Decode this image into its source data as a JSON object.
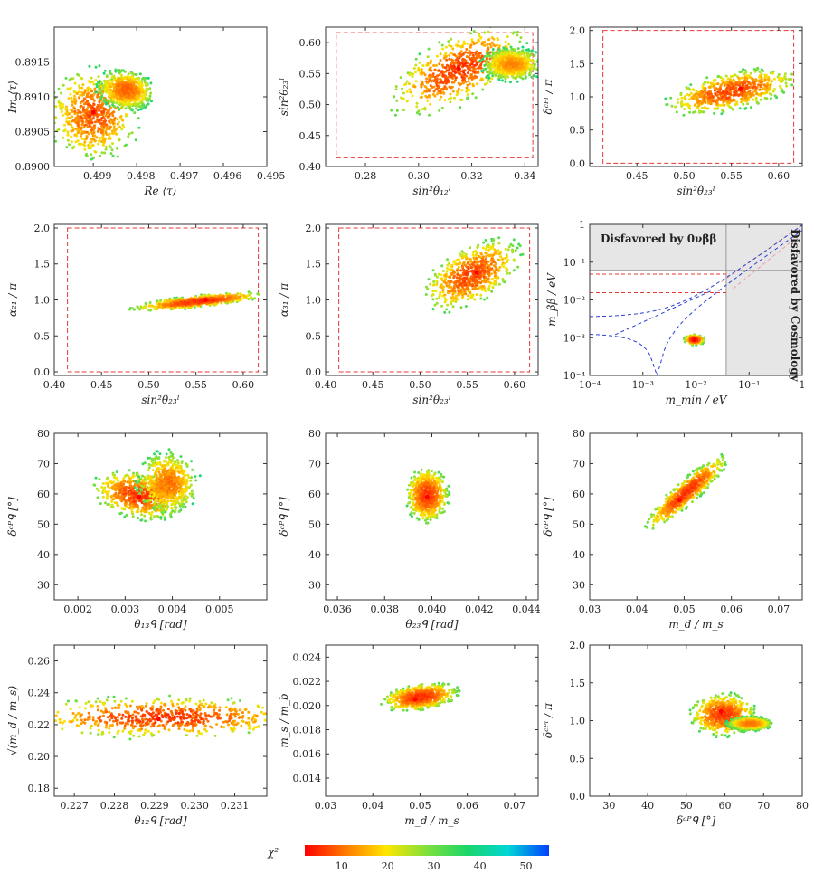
{
  "figure": {
    "colorbar": {
      "label": "χ²",
      "ticks": [
        10,
        20,
        30,
        40,
        50
      ],
      "range": [
        2,
        55
      ],
      "colors": [
        "#ff0000",
        "#ff7a00",
        "#ffe600",
        "#7ee03c",
        "#1bd66a",
        "#00d6d6",
        "#0040ff"
      ]
    }
  },
  "chart_data": [
    {
      "type": "scatter",
      "name": "re-im-tau",
      "xlabel": "Re ⟨τ⟩",
      "ylabel": "Im ⟨τ⟩",
      "xlim": [
        -0.4999,
        -0.495
      ],
      "ylim": [
        0.89,
        0.892
      ],
      "xticks": [
        -0.499,
        -0.498,
        -0.497,
        -0.496,
        -0.495
      ],
      "xticklabels": [
        "−0.499",
        "−0.498",
        "−0.497",
        "−0.496",
        "−0.495"
      ],
      "yticks": [
        0.89,
        0.8905,
        0.891,
        0.8915
      ],
      "yticklabels": [
        "0.8900",
        "0.8905",
        "0.8910",
        "0.8915"
      ],
      "clusters": [
        {
          "cx": -0.499,
          "cy": 0.89075,
          "sx": 0.00045,
          "sy": 0.00028,
          "rot": 55,
          "chi": 20
        },
        {
          "cx": -0.49825,
          "cy": 0.8911,
          "sx": 0.00028,
          "sy": 0.00012,
          "rot": 10,
          "chi": 24
        }
      ],
      "best_fit": [
        -0.499,
        0.89078
      ]
    },
    {
      "type": "scatter",
      "name": "s12-s23",
      "xlabel": "sin²θ₁₂ˡ",
      "ylabel": "sin²θ₂₃ˡ",
      "xlim": [
        0.265,
        0.345
      ],
      "ylim": [
        0.4,
        0.625
      ],
      "xticks": [
        0.28,
        0.3,
        0.32,
        0.34
      ],
      "xticklabels": [
        "0.28",
        "0.30",
        "0.32",
        "0.34"
      ],
      "yticks": [
        0.4,
        0.45,
        0.5,
        0.55,
        0.6
      ],
      "yticklabels": [
        "0.40",
        "0.45",
        "0.50",
        "0.55",
        "0.60"
      ],
      "bounds": {
        "x": [
          0.269,
          0.343
        ],
        "y": [
          0.414,
          0.616
        ]
      },
      "clusters": [
        {
          "cx": 0.315,
          "cy": 0.556,
          "sx": 0.012,
          "sy": 0.022,
          "rot": -28,
          "chi": 16
        },
        {
          "cx": 0.335,
          "cy": 0.565,
          "sx": 0.005,
          "sy": 0.012,
          "rot": 0,
          "chi": 30
        }
      ],
      "best_fit": [
        0.315,
        0.558
      ]
    },
    {
      "type": "scatter",
      "name": "s23-dcp",
      "xlabel": "sin²θ₂₃ˡ",
      "ylabel": "δᶜᴾˡ / π",
      "xlim": [
        0.4,
        0.625
      ],
      "ylim": [
        -0.05,
        2.05
      ],
      "xticks": [
        0.45,
        0.5,
        0.55,
        0.6
      ],
      "xticklabels": [
        "0.45",
        "0.50",
        "0.55",
        "0.60"
      ],
      "yticks": [
        0,
        0.5,
        1,
        1.5,
        2
      ],
      "yticklabels": [
        "0.0",
        "0.5",
        "1.0",
        "1.5",
        "2.0"
      ],
      "bounds": {
        "x": [
          0.414,
          0.616
        ],
        "y": [
          0,
          2
        ]
      },
      "clusters": [
        {
          "cx": 0.55,
          "cy": 1.08,
          "sx": 0.03,
          "sy": 0.12,
          "rot": -12,
          "chi": 18
        }
      ],
      "best_fit": [
        0.56,
        1.12
      ]
    },
    {
      "type": "scatter",
      "name": "s23-a21",
      "xlabel": "sin²θ₂₃ˡ",
      "ylabel": "α₂₁ / π",
      "xlim": [
        0.4,
        0.625
      ],
      "ylim": [
        -0.05,
        2.05
      ],
      "xticks": [
        0.4,
        0.45,
        0.5,
        0.55,
        0.6
      ],
      "xticklabels": [
        "0.40",
        "0.45",
        "0.50",
        "0.55",
        "0.60"
      ],
      "yticks": [
        0,
        0.5,
        1,
        1.5,
        2
      ],
      "yticklabels": [
        "0.0",
        "0.5",
        "1.0",
        "1.5",
        "2.0"
      ],
      "bounds": {
        "x": [
          0.414,
          0.616
        ],
        "y": [
          0,
          2
        ]
      },
      "clusters": [
        {
          "cx": 0.553,
          "cy": 0.98,
          "sx": 0.03,
          "sy": 0.035,
          "rot": -6,
          "chi": 16
        }
      ],
      "best_fit": [
        0.56,
        1.0
      ]
    },
    {
      "type": "scatter",
      "name": "s23-a31",
      "xlabel": "sin²θ₂₃ˡ",
      "ylabel": "α₃₁ / π",
      "xlim": [
        0.4,
        0.625
      ],
      "ylim": [
        -0.05,
        2.05
      ],
      "xticks": [
        0.4,
        0.45,
        0.5,
        0.55,
        0.6
      ],
      "xticklabels": [
        "0.40",
        "0.45",
        "0.50",
        "0.55",
        "0.60"
      ],
      "yticks": [
        0,
        0.5,
        1,
        1.5,
        2
      ],
      "yticklabels": [
        "0.0",
        "0.5",
        "1.0",
        "1.5",
        "2.0"
      ],
      "bounds": {
        "x": [
          0.414,
          0.616
        ],
        "y": [
          0,
          2
        ]
      },
      "clusters": [
        {
          "cx": 0.555,
          "cy": 1.35,
          "sx": 0.024,
          "sy": 0.16,
          "rot": -30,
          "chi": 18
        }
      ],
      "best_fit": [
        0.56,
        1.38
      ]
    },
    {
      "type": "scatter",
      "name": "mbb-mmin",
      "log": true,
      "xlabel": "m_min / eV",
      "ylabel": "m_ββ / eV",
      "xlim": [
        0.0001,
        1
      ],
      "ylim": [
        0.0001,
        1
      ],
      "xticks": [
        0.0001,
        0.001,
        0.01,
        0.1,
        1
      ],
      "xticklabels": [
        "10⁻⁴",
        "10⁻³",
        "10⁻²",
        "10⁻¹",
        "1"
      ],
      "yticks": [
        0.0001,
        0.001,
        0.01,
        0.1,
        1
      ],
      "yticklabels": [
        "10⁻⁴",
        "10⁻³",
        "10⁻²",
        "10⁻¹",
        "1"
      ],
      "excluded_0vbb": 0.061,
      "excluded_cosmology": 0.037,
      "annotations": [
        "Disfavored by 0νββ",
        "Disfavored by Cosmology"
      ],
      "red_lines": [
        0.0155,
        0.048
      ],
      "clusters": [
        {
          "cx": 0.0093,
          "cy": 0.00088,
          "sx": 0.0011,
          "sy": 0.00012,
          "rot": 0,
          "chi": 14
        }
      ],
      "best_fit": [
        0.0093,
        0.00088
      ]
    },
    {
      "type": "scatter",
      "name": "t13q-dcpq",
      "xlabel": "θ₁₃ᑫ [rad]",
      "ylabel": "δᶜᴾᑫ [°]",
      "xlim": [
        0.0015,
        0.006
      ],
      "ylim": [
        25,
        80
      ],
      "xticks": [
        0.002,
        0.003,
        0.004,
        0.005
      ],
      "xticklabels": [
        "0.002",
        "0.003",
        "0.004",
        "0.005"
      ],
      "yticks": [
        30,
        40,
        50,
        60,
        70,
        80
      ],
      "yticklabels": [
        "30",
        "40",
        "50",
        "60",
        "70",
        "80"
      ],
      "clusters": [
        {
          "cx": 0.0033,
          "cy": 59.5,
          "sx": 0.00042,
          "sy": 3.2,
          "rot": 12,
          "chi": 16
        },
        {
          "cx": 0.0039,
          "cy": 63.5,
          "sx": 0.00028,
          "sy": 4.5,
          "rot": 0,
          "chi": 26
        }
      ],
      "best_fit": [
        0.0033,
        59
      ]
    },
    {
      "type": "scatter",
      "name": "t23q-dcpq",
      "xlabel": "θ₂₃ᑫ [rad]",
      "ylabel": "δᶜᴾᑫ [°]",
      "xlim": [
        0.0355,
        0.0445
      ],
      "ylim": [
        25,
        80
      ],
      "xticks": [
        0.036,
        0.038,
        0.04,
        0.042,
        0.044
      ],
      "xticklabels": [
        "0.036",
        "0.038",
        "0.040",
        "0.042",
        "0.044"
      ],
      "yticks": [
        30,
        40,
        50,
        60,
        70,
        80
      ],
      "yticklabels": [
        "30",
        "40",
        "50",
        "60",
        "70",
        "80"
      ],
      "clusters": [
        {
          "cx": 0.0398,
          "cy": 59.5,
          "sx": 0.00038,
          "sy": 3.8,
          "rot": 0,
          "chi": 17
        }
      ],
      "best_fit": [
        0.0398,
        59
      ]
    },
    {
      "type": "scatter",
      "name": "mdms-dcpq",
      "xlabel": "m_d / m_s",
      "ylabel": "δᶜᴾᑫ [°]",
      "xlim": [
        0.03,
        0.075
      ],
      "ylim": [
        25,
        80
      ],
      "xticks": [
        0.03,
        0.04,
        0.05,
        0.06,
        0.07
      ],
      "xticklabels": [
        "0.03",
        "0.04",
        "0.05",
        "0.06",
        "0.07"
      ],
      "yticks": [
        30,
        40,
        50,
        60,
        70,
        80
      ],
      "yticklabels": [
        "30",
        "40",
        "50",
        "60",
        "70",
        "80"
      ],
      "clusters": [
        {
          "cx": 0.0505,
          "cy": 60.5,
          "sx": 0.0048,
          "sy": 1.6,
          "rot": -42,
          "chi": 16
        }
      ],
      "best_fit": [
        0.049,
        58
      ]
    },
    {
      "type": "scatter",
      "name": "t12q-sqrt",
      "xlabel": "θ₁₂ᑫ [rad]",
      "ylabel": "√(m_d / m_s)",
      "xlim": [
        0.2265,
        0.2318
      ],
      "ylim": [
        0.175,
        0.27
      ],
      "xticks": [
        0.227,
        0.228,
        0.229,
        0.23,
        0.231
      ],
      "xticklabels": [
        "0.227",
        "0.228",
        "0.229",
        "0.230",
        "0.231"
      ],
      "yticks": [
        0.18,
        0.2,
        0.22,
        0.24,
        0.26
      ],
      "yticklabels": [
        "0.18",
        "0.20",
        "0.22",
        "0.24",
        "0.26"
      ],
      "clusters": [
        {
          "cx": 0.2292,
          "cy": 0.2245,
          "sx": 0.0016,
          "sy": 0.0055,
          "rot": 0,
          "chi": 15
        }
      ],
      "best_fit": [
        0.2291,
        0.2235
      ]
    },
    {
      "type": "scatter",
      "name": "mdms-msmb",
      "xlabel": "m_d / m_s",
      "ylabel": "m_s / m_b",
      "xlim": [
        0.03,
        0.075
      ],
      "ylim": [
        0.0125,
        0.025
      ],
      "xticks": [
        0.03,
        0.04,
        0.05,
        0.06,
        0.07
      ],
      "xticklabels": [
        "0.03",
        "0.04",
        "0.05",
        "0.06",
        "0.07"
      ],
      "yticks": [
        0.014,
        0.016,
        0.018,
        0.02,
        0.022,
        0.024
      ],
      "yticklabels": [
        "0.014",
        "0.016",
        "0.018",
        "0.020",
        "0.022",
        "0.024"
      ],
      "clusters": [
        {
          "cx": 0.05,
          "cy": 0.0207,
          "sx": 0.0034,
          "sy": 0.00045,
          "rot": -8,
          "chi": 16
        }
      ],
      "best_fit": [
        0.049,
        0.0205
      ]
    },
    {
      "type": "scatter",
      "name": "dcpq-dcpl",
      "xlabel": "δᶜᴾᑫ [°]",
      "ylabel": "δᶜᴾˡ / π",
      "xlim": [
        25,
        80
      ],
      "ylim": [
        0,
        2
      ],
      "xticks": [
        30,
        40,
        50,
        60,
        70,
        80
      ],
      "xticklabels": [
        "30",
        "40",
        "50",
        "60",
        "70",
        "80"
      ],
      "yticks": [
        0,
        0.5,
        1,
        1.5,
        2
      ],
      "yticklabels": [
        "0.0",
        "0.5",
        "1.0",
        "1.5",
        "2.0"
      ],
      "clusters": [
        {
          "cx": 59.5,
          "cy": 1.08,
          "sx": 3.6,
          "sy": 0.12,
          "rot": 0,
          "chi": 17
        },
        {
          "cx": 66.5,
          "cy": 0.96,
          "sx": 2.6,
          "sy": 0.04,
          "rot": 0,
          "chi": 28
        }
      ],
      "best_fit": [
        59,
        1.12
      ]
    }
  ]
}
